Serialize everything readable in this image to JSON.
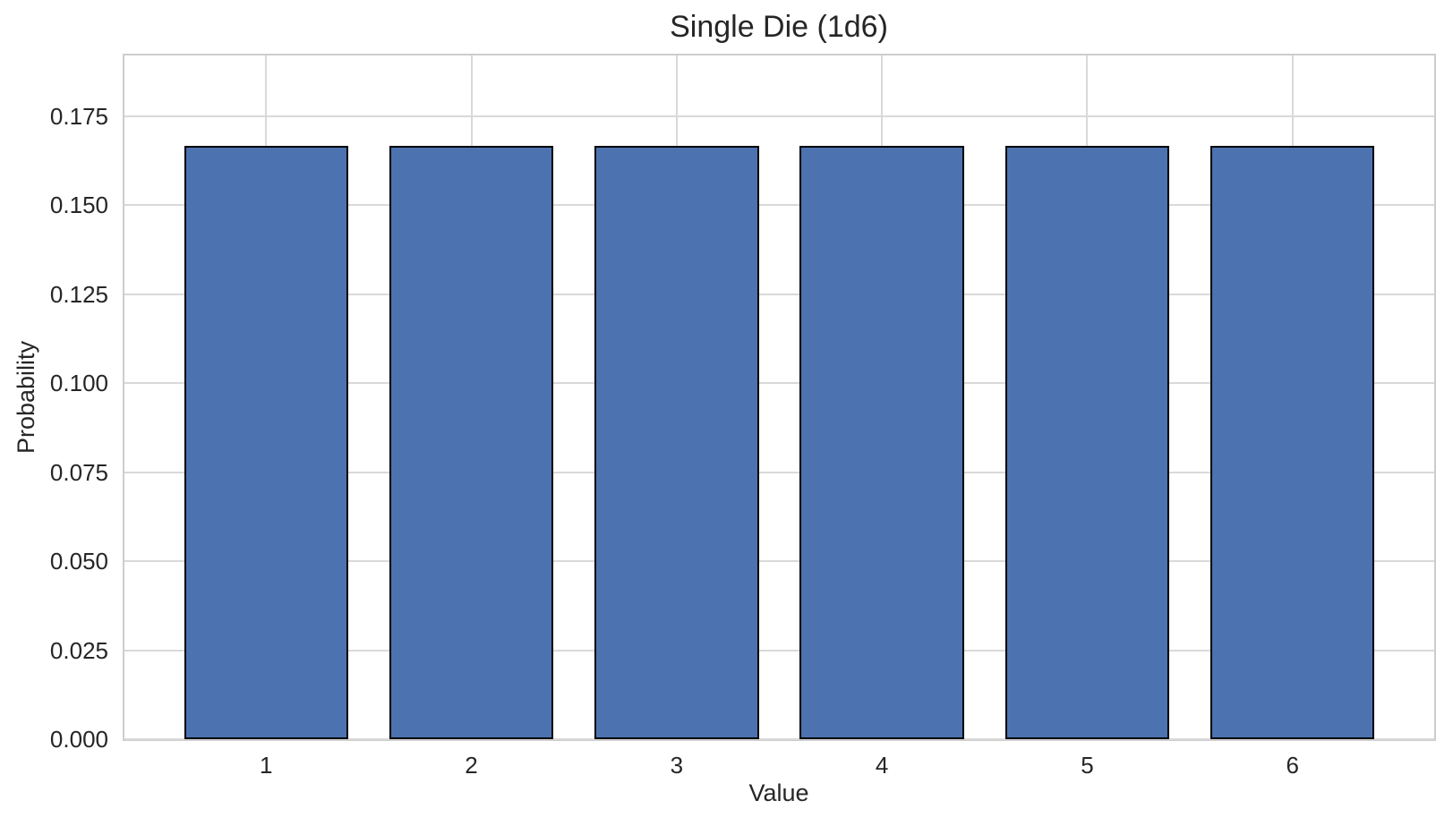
{
  "chart_data": {
    "type": "bar",
    "title": "Single Die (1d6)",
    "xlabel": "Value",
    "ylabel": "Probability",
    "categories": [
      "1",
      "2",
      "3",
      "4",
      "5",
      "6"
    ],
    "x": [
      1,
      2,
      3,
      4,
      5,
      6
    ],
    "values": [
      0.16667,
      0.16667,
      0.16667,
      0.16667,
      0.16667,
      0.16667
    ],
    "ytick_labels": [
      "0.000",
      "0.025",
      "0.050",
      "0.075",
      "0.100",
      "0.125",
      "0.150",
      "0.175"
    ],
    "ytick_values": [
      0.0,
      0.025,
      0.05,
      0.075,
      0.1,
      0.125,
      0.15,
      0.175
    ],
    "xlim": [
      0.31,
      6.69
    ],
    "ylim": [
      0.0,
      0.192
    ],
    "bar_width": 0.8,
    "grid": true,
    "legend_position": "none",
    "colors": {
      "bar_fill": "#4C72B0",
      "bar_edge": "#000000",
      "grid": "#d9d9d9",
      "spine": "#cdcdcd",
      "text": "#262626",
      "background": "#ffffff"
    }
  }
}
